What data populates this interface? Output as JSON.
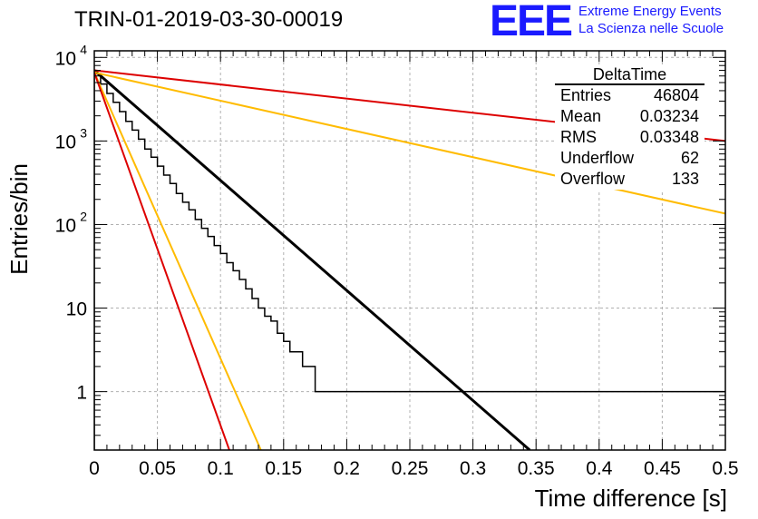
{
  "chart_data": {
    "type": "histogram",
    "title": "TRIN-01-2019-03-30-00019",
    "xlabel": "Time difference [s]",
    "ylabel": "Entries/bin",
    "xlim": [
      0,
      0.5
    ],
    "ylim": [
      0.2,
      12000
    ],
    "yscale": "log",
    "grid": true,
    "x_ticks": [
      "0",
      "0.05",
      "0.1",
      "0.15",
      "0.2",
      "0.25",
      "0.3",
      "0.35",
      "0.4",
      "0.45",
      "0.5"
    ],
    "bin_width": 0.005,
    "histogram_values": [
      6400,
      4800,
      3700,
      2900,
      2250,
      1720,
      1350,
      1050,
      800,
      640,
      500,
      390,
      310,
      235,
      185,
      150,
      115,
      90,
      72,
      56,
      45,
      35,
      28,
      22,
      17,
      13,
      10,
      8,
      7,
      5,
      4,
      3,
      3,
      2,
      2,
      1,
      1,
      1,
      1,
      1,
      1,
      1,
      1,
      1,
      1,
      1,
      1,
      1,
      1,
      1,
      1,
      1,
      1,
      1,
      1,
      1,
      1,
      1,
      1,
      1,
      1,
      1,
      1,
      1,
      1,
      1,
      1,
      1,
      1,
      1,
      1,
      1,
      1,
      1,
      1,
      1,
      1,
      1,
      1,
      1,
      1,
      1,
      1,
      1,
      1,
      1,
      1,
      1,
      1,
      1,
      1,
      1,
      1,
      1,
      1,
      1,
      1,
      1,
      1,
      1
    ],
    "fit_lines": [
      {
        "color": "#000000",
        "x": [
          0,
          0.345
        ],
        "y": [
          7000,
          0.2
        ]
      },
      {
        "color": "#dd0000",
        "x": [
          0,
          0.5
        ],
        "y": [
          7000,
          1000
        ]
      },
      {
        "color": "#ffbb00",
        "x": [
          0,
          0.5
        ],
        "y": [
          6600,
          135
        ]
      },
      {
        "color": "#ffbb00",
        "x": [
          0,
          0.132
        ],
        "y": [
          6600,
          0.2
        ]
      },
      {
        "color": "#dd0000",
        "x": [
          0,
          0.107
        ],
        "y": [
          6600,
          0.2
        ]
      }
    ]
  },
  "logo": {
    "mark": "EEE",
    "line1": "Extreme Energy Events",
    "line2": "La Scienza nelle Scuole"
  },
  "stats": {
    "title": "DeltaTime",
    "rows": [
      {
        "label": "Entries",
        "value": "46804"
      },
      {
        "label": "Mean",
        "value": "0.03234"
      },
      {
        "label": "RMS",
        "value": "0.03348"
      },
      {
        "label": "Underflow",
        "value": "62"
      },
      {
        "label": "Overflow",
        "value": "133"
      }
    ]
  },
  "y_tick_labels": {
    "t1": "1",
    "t10": "10",
    "t100": "10",
    "t100_exp": "2",
    "t1000": "10",
    "t1000_exp": "3",
    "t10000": "10",
    "t10000_exp": "4"
  }
}
